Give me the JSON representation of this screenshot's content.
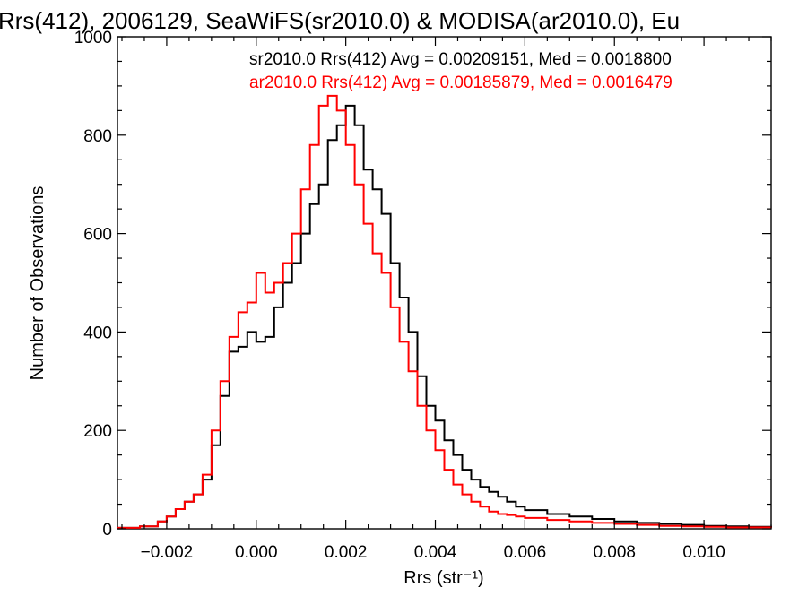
{
  "chart_data": {
    "type": "line",
    "title": "Rrs(412), 2006129, SeaWiFS(sr2010.0) & MODISA(ar2010.0), Eu",
    "xlabel": "Rrs (str⁻¹)",
    "ylabel": "Number of Observations",
    "xlim": [
      -0.0031,
      0.0115
    ],
    "ylim": [
      0,
      1000
    ],
    "xticks": [
      -0.002,
      0.0,
      0.002,
      0.004,
      0.006,
      0.008,
      0.01
    ],
    "xtick_labels": [
      "−0.002",
      "0.000",
      "0.002",
      "0.004",
      "0.006",
      "0.008",
      "0.010"
    ],
    "yticks": [
      0,
      200,
      400,
      600,
      800,
      1000
    ],
    "ytick_labels": [
      "0",
      "200",
      "400",
      "600",
      "800",
      "1000"
    ],
    "grid": false,
    "legend_position": "top-right",
    "series": [
      {
        "name": "sr2010.0 Rrs(412) Avg = 0.00209151, Med = 0.0018800",
        "color": "#000000",
        "x": [
          -0.0031,
          -0.0026,
          -0.0022,
          -0.002,
          -0.0018,
          -0.0016,
          -0.0014,
          -0.0012,
          -0.001,
          -0.0008,
          -0.0006,
          -0.0004,
          -0.0002,
          0.0,
          0.0002,
          0.0004,
          0.0006,
          0.0008,
          0.001,
          0.0012,
          0.0014,
          0.0016,
          0.0018,
          0.002,
          0.0022,
          0.0024,
          0.0026,
          0.0028,
          0.003,
          0.0032,
          0.0034,
          0.0036,
          0.0038,
          0.004,
          0.0042,
          0.0044,
          0.0046,
          0.0048,
          0.005,
          0.0052,
          0.0054,
          0.0056,
          0.0058,
          0.006,
          0.0065,
          0.007,
          0.0075,
          0.008,
          0.0085,
          0.009,
          0.0095,
          0.01,
          0.0105,
          0.011,
          0.0115
        ],
        "y": [
          2,
          5,
          15,
          25,
          40,
          55,
          70,
          100,
          170,
          270,
          360,
          370,
          400,
          380,
          390,
          450,
          500,
          540,
          600,
          660,
          700,
          790,
          820,
          860,
          820,
          730,
          690,
          640,
          540,
          470,
          400,
          310,
          250,
          220,
          180,
          150,
          120,
          100,
          85,
          75,
          65,
          55,
          45,
          38,
          30,
          25,
          20,
          15,
          12,
          10,
          8,
          6,
          5,
          4,
          3
        ]
      },
      {
        "name": "ar2010.0 Rrs(412) Avg = 0.00185879, Med = 0.0016479",
        "color": "#ff0000",
        "x": [
          -0.0031,
          -0.0026,
          -0.0022,
          -0.002,
          -0.0018,
          -0.0016,
          -0.0014,
          -0.0012,
          -0.001,
          -0.0008,
          -0.0006,
          -0.0004,
          -0.0002,
          0.0,
          0.0002,
          0.0004,
          0.0006,
          0.0008,
          0.001,
          0.0012,
          0.0014,
          0.0016,
          0.0018,
          0.002,
          0.0022,
          0.0024,
          0.0026,
          0.0028,
          0.003,
          0.0032,
          0.0034,
          0.0036,
          0.0038,
          0.004,
          0.0042,
          0.0044,
          0.0046,
          0.0048,
          0.005,
          0.0052,
          0.0054,
          0.0056,
          0.0058,
          0.006,
          0.0065,
          0.007,
          0.0075,
          0.008,
          0.0085,
          0.009,
          0.0095,
          0.01,
          0.0105,
          0.011,
          0.0115
        ],
        "y": [
          2,
          5,
          15,
          25,
          40,
          55,
          70,
          110,
          200,
          300,
          390,
          440,
          460,
          520,
          480,
          500,
          540,
          600,
          690,
          780,
          860,
          880,
          850,
          780,
          700,
          620,
          560,
          520,
          450,
          380,
          320,
          250,
          200,
          160,
          120,
          90,
          70,
          55,
          45,
          35,
          30,
          28,
          25,
          22,
          18,
          15,
          12,
          10,
          8,
          6,
          5,
          4,
          3,
          3,
          2
        ]
      }
    ]
  }
}
